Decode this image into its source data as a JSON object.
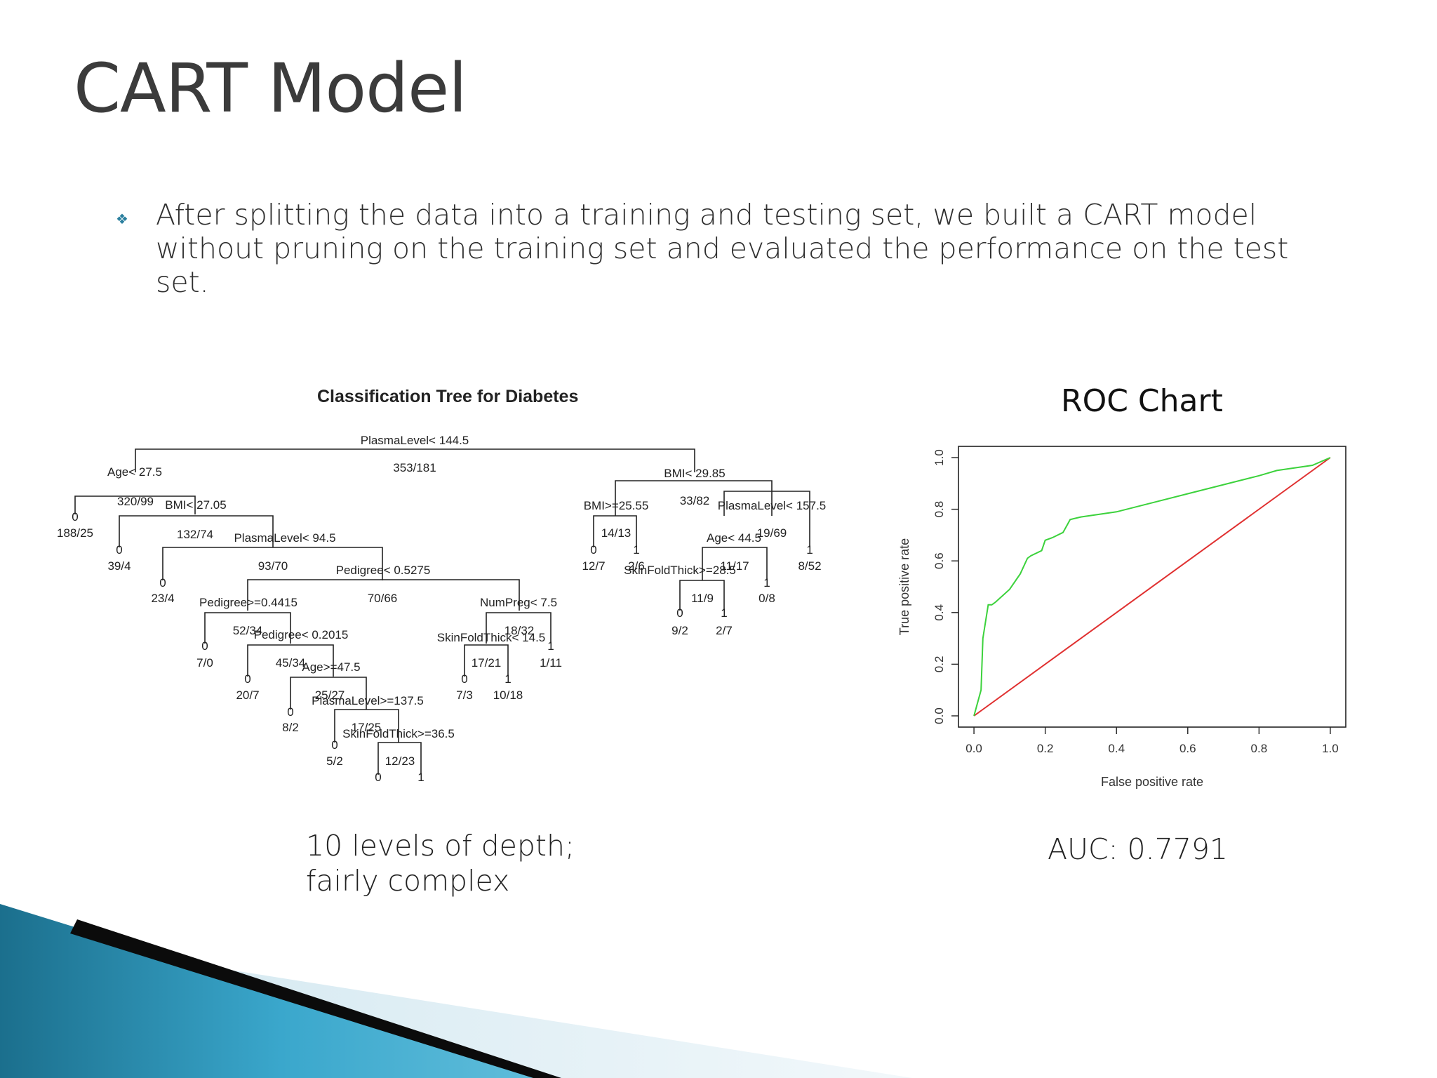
{
  "slide": {
    "title": "CART Model",
    "bullet_icon": "diamond-bullet-icon",
    "bullet_text": "After splitting the data into a training and testing set, we built a CART model without pruning on the training set and evaluated the performance on the test set.",
    "caption_left": "10 levels of depth; fairly complex",
    "caption_right": "AUC: 0.7791",
    "accent_color": "#2a7f9e"
  },
  "chart_data": [
    {
      "type": "tree",
      "title": "Classification Tree for Diabetes",
      "splits": [
        "PlasmaLevel< 144.5",
        "Age< 27.5",
        "BMI< 27.05",
        "PlasmaLevel< 94.5",
        "Pedigree< 0.5275",
        "Pedigree>=0.4415",
        "Pedigree< 0.2015",
        "Age>=47.5",
        "PlasmaLevel>=137.5",
        "SkinFoldThick>=36.5",
        "NumPreg< 7.5",
        "SkinFoldThick< 14.5",
        "BMI< 29.85",
        "BMI>=25.55",
        "PlasmaLevel< 157.5",
        "Age< 44.5",
        "SkinFoldThick>=28.5"
      ],
      "counts": [
        "353/181",
        "320/99",
        "188/25",
        "132/74",
        "39/4",
        "93/70",
        "23/4",
        "70/66",
        "52/34",
        "7/0",
        "45/34",
        "20/7",
        "25/27",
        "8/2",
        "17/25",
        "5/2",
        "12/23",
        "18/32",
        "17/21",
        "7/3",
        "10/18",
        "1/11",
        "33/82",
        "14/13",
        "12/7",
        "2/6",
        "19/69",
        "11/17",
        "11/9",
        "9/2",
        "2/7",
        "0/8",
        "8/52"
      ],
      "class_labels": [
        "0",
        "1"
      ]
    },
    {
      "type": "line",
      "title": "ROC Chart",
      "xlabel": "False positive rate",
      "ylabel": "True positive rate",
      "xlim": [
        0.0,
        1.0
      ],
      "ylim": [
        0.0,
        1.0
      ],
      "ticks": [
        "0.0",
        "0.2",
        "0.4",
        "0.6",
        "0.8",
        "1.0"
      ],
      "auc": 0.7791,
      "series": [
        {
          "color": "#3cd23c",
          "x": [
            0.0,
            0.02,
            0.025,
            0.04,
            0.05,
            0.06,
            0.1,
            0.13,
            0.15,
            0.16,
            0.19,
            0.2,
            0.22,
            0.25,
            0.27,
            0.3,
            0.4,
            0.6,
            0.8,
            0.85,
            0.95,
            1.0
          ],
          "y": [
            0.0,
            0.1,
            0.3,
            0.43,
            0.43,
            0.44,
            0.49,
            0.55,
            0.61,
            0.62,
            0.64,
            0.68,
            0.69,
            0.71,
            0.76,
            0.77,
            0.79,
            0.86,
            0.93,
            0.95,
            0.97,
            1.0
          ]
        },
        {
          "color": "#e03030",
          "x": [
            0.0,
            1.0
          ],
          "y": [
            0.0,
            1.0
          ]
        }
      ]
    }
  ]
}
